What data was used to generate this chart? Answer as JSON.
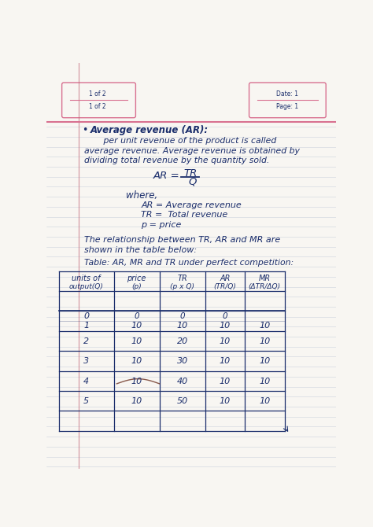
{
  "bg_color": "#f8f6f2",
  "white_color": "#ffffff",
  "line_color": "#b8c4d0",
  "blue_color": "#1a2d6b",
  "pink_color": "#d87090",
  "red_color": "#8B3030",
  "header_left_label1": "1 of 2",
  "header_left_label2": "1 of 2",
  "header_right_label1": "Date: 1",
  "header_right_label2": "Page: 1",
  "bullet_title": "Average revenue (AR):",
  "line1": "       per unit revenue of the product is called",
  "line2": "average revenue. Average revenue is obtained by",
  "line3": "dividing total revenue by the quantity sold.",
  "where_label": "where,",
  "def1": "AR = Average revenue",
  "def2": "TR =  Total revenue",
  "def3": "p = price",
  "rel_line1": "The relationship between TR, AR and MR are",
  "rel_line2": "shown in the table below:",
  "table_title": "Table: AR, MR and TR under perfect competition:",
  "col_h1": [
    "units of",
    "price",
    "TR",
    "AR",
    "MR"
  ],
  "col_h2": [
    "output(Q)",
    "(p)",
    "(p x Q)",
    "(TR/Q)",
    "(ΔTR/ΔQ)"
  ],
  "rows": [
    [
      "0",
      "",
      "0",
      "0",
      ""
    ],
    [
      "1",
      "10",
      "10",
      "10",
      "10"
    ],
    [
      "2",
      "10",
      "20",
      "10",
      "10"
    ],
    [
      "3",
      "10",
      "30",
      "10",
      "10"
    ],
    [
      "4",
      "10",
      "40",
      "10",
      "10"
    ],
    [
      "5",
      "10",
      "50",
      "10",
      "10"
    ]
  ]
}
